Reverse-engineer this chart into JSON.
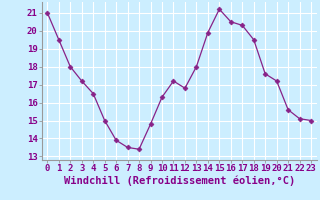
{
  "hours": [
    0,
    1,
    2,
    3,
    4,
    5,
    6,
    7,
    8,
    9,
    10,
    11,
    12,
    13,
    14,
    15,
    16,
    17,
    18,
    19,
    20,
    21,
    22,
    23
  ],
  "values": [
    21.0,
    19.5,
    18.0,
    17.2,
    16.5,
    15.0,
    13.9,
    13.5,
    13.4,
    14.8,
    16.3,
    17.2,
    16.8,
    18.0,
    19.9,
    21.2,
    20.5,
    20.3,
    19.5,
    17.6,
    17.2,
    15.6,
    15.1,
    15.0
  ],
  "line_color": "#882288",
  "marker": "D",
  "marker_size": 2.5,
  "bg_color": "#cceeff",
  "grid_color": "#ffffff",
  "ylim": [
    12.8,
    21.6
  ],
  "yticks": [
    13,
    14,
    15,
    16,
    17,
    18,
    19,
    20,
    21
  ],
  "xlabel": "Windchill (Refroidissement éolien,°C)",
  "tick_fontsize": 6.5,
  "xlabel_fontsize": 7.5,
  "label_color": "#880088"
}
